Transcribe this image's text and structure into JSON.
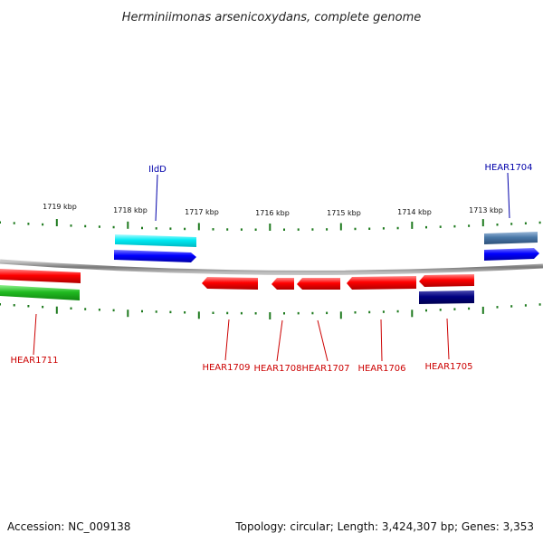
{
  "title": "Herminiimonas arsenicoxydans, complete genome",
  "ruler": {
    "ticks_kbp": [
      "1719 kbp",
      "1718 kbp",
      "1717 kbp",
      "1716 kbp",
      "1715 kbp",
      "1714 kbp",
      "1713 kbp"
    ],
    "tick_color": "#1e7a1e"
  },
  "genes": [
    {
      "label": "HEAR1711",
      "strand": "forward",
      "color": "#ff0000",
      "label_color": "#cc0000"
    },
    {
      "label": "IldD",
      "strand": "forward",
      "color": "#0000ff",
      "label_color": "#0000aa"
    },
    {
      "label": "HEAR1704",
      "strand": "forward",
      "color": "#0000ff",
      "label_color": "#0000aa"
    },
    {
      "label": "HEAR1709",
      "strand": "reverse",
      "color": "#ff0000",
      "label_color": "#cc0000"
    },
    {
      "label": "HEAR1708",
      "strand": "reverse",
      "color": "#ff0000",
      "label_color": "#cc0000"
    },
    {
      "label": "HEAR1707",
      "strand": "reverse",
      "color": "#ff0000",
      "label_color": "#cc0000"
    },
    {
      "label": "HEAR1706",
      "strand": "reverse",
      "color": "#ff0000",
      "label_color": "#cc0000"
    },
    {
      "label": "HEAR1705",
      "strand": "reverse",
      "color": "#ff0000",
      "label_color": "#cc0000"
    }
  ],
  "feature_colors": {
    "rna_green": "#22bb22",
    "cds_cyan": "#00e5ee",
    "cds_steel": "#4a78a8",
    "cds_navy": "#000080",
    "backbone": "#888888"
  },
  "footer": {
    "accession": "Accession: NC_009138",
    "topology": "Topology: circular; Length: 3,424,307 bp; Genes: 3,353"
  }
}
